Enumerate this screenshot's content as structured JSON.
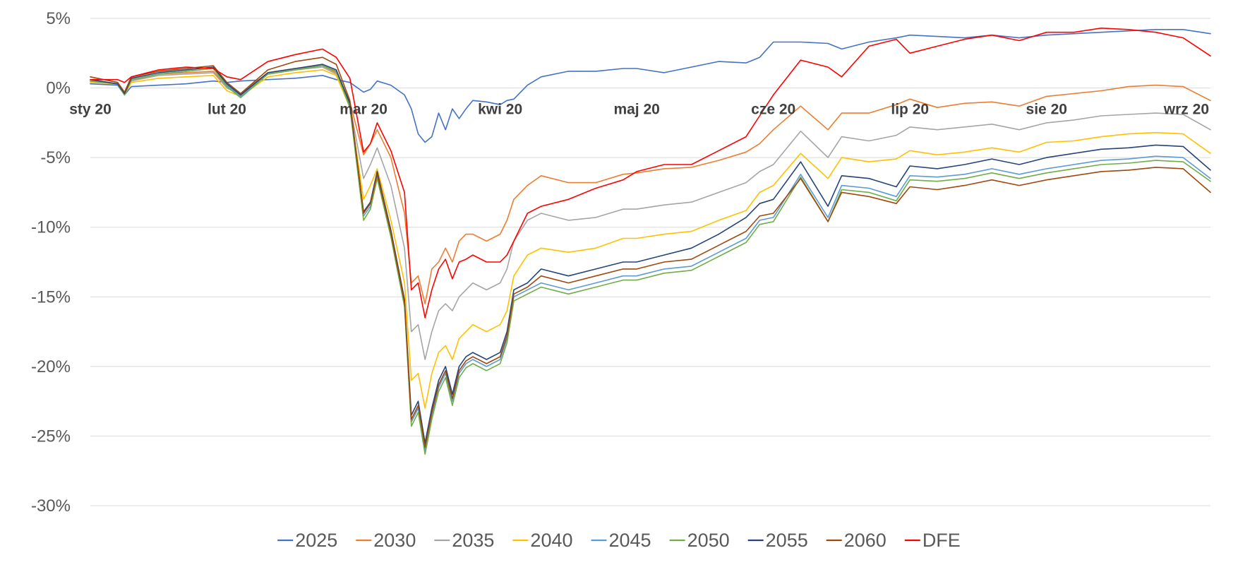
{
  "chart_data": {
    "type": "line",
    "title": "",
    "xlabel": "",
    "ylabel": "",
    "ylim": [
      -30,
      5
    ],
    "y_ticks": [
      5,
      0,
      -5,
      -10,
      -15,
      -20,
      -25,
      -30
    ],
    "y_tick_labels": [
      "5%",
      "0%",
      "-5%",
      "-10%",
      "-15%",
      "-20%",
      "-25%",
      "-30%"
    ],
    "x_range": [
      0,
      8.2
    ],
    "x_tick_positions": [
      0,
      1,
      2,
      3,
      4,
      5,
      6,
      7,
      8
    ],
    "x_tick_labels": [
      "sty 20",
      "lut 20",
      "mar 20",
      "kwi 20",
      "maj 20",
      "cze 20",
      "lip 20",
      "sie 20",
      "wrz 20"
    ],
    "grid": true,
    "legend_position": "bottom",
    "series": [
      {
        "name": "2025",
        "color": "#4472C4",
        "x": [
          0,
          0.2,
          0.25,
          0.3,
          0.5,
          0.7,
          0.9,
          1.0,
          1.1,
          1.3,
          1.5,
          1.7,
          1.8,
          1.9,
          2.0,
          2.05,
          2.1,
          2.2,
          2.3,
          2.35,
          2.4,
          2.45,
          2.5,
          2.55,
          2.6,
          2.65,
          2.7,
          2.75,
          2.8,
          2.9,
          3.0,
          3.05,
          3.1,
          3.2,
          3.3,
          3.5,
          3.7,
          3.9,
          4.0,
          4.2,
          4.4,
          4.6,
          4.8,
          4.9,
          5.0,
          5.2,
          5.4,
          5.5,
          5.7,
          5.9,
          6.0,
          6.2,
          6.4,
          6.6,
          6.8,
          7.0,
          7.2,
          7.4,
          7.6,
          7.8,
          8.0,
          8.2
        ],
        "y": [
          0.3,
          0.2,
          -0.5,
          0.1,
          0.2,
          0.3,
          0.5,
          0.4,
          0.5,
          0.6,
          0.7,
          0.9,
          0.6,
          0.4,
          -0.3,
          -0.1,
          0.5,
          0.2,
          -0.5,
          -1.5,
          -3.3,
          -3.9,
          -3.5,
          -1.8,
          -3.0,
          -1.5,
          -2.2,
          -1.5,
          -0.9,
          -1.0,
          -1.2,
          -0.9,
          -0.8,
          0.2,
          0.8,
          1.2,
          1.2,
          1.4,
          1.4,
          1.1,
          1.5,
          1.9,
          1.8,
          2.2,
          3.3,
          3.3,
          3.2,
          2.8,
          3.3,
          3.6,
          3.8,
          3.7,
          3.6,
          3.8,
          3.6,
          3.8,
          3.9,
          4.0,
          4.1,
          4.2,
          4.2,
          3.9
        ]
      },
      {
        "name": "2030",
        "color": "#ED7D31",
        "x": [
          0,
          0.2,
          0.25,
          0.3,
          0.5,
          0.7,
          0.9,
          1.0,
          1.1,
          1.3,
          1.5,
          1.7,
          1.8,
          1.9,
          2.0,
          2.05,
          2.1,
          2.2,
          2.3,
          2.35,
          2.4,
          2.45,
          2.5,
          2.55,
          2.6,
          2.65,
          2.7,
          2.75,
          2.8,
          2.9,
          3.0,
          3.05,
          3.1,
          3.2,
          3.3,
          3.5,
          3.7,
          3.9,
          4.0,
          4.2,
          4.4,
          4.6,
          4.8,
          4.9,
          5.0,
          5.2,
          5.4,
          5.5,
          5.7,
          5.9,
          6.0,
          6.2,
          6.4,
          6.6,
          6.8,
          7.0,
          7.2,
          7.4,
          7.6,
          7.8,
          8.0,
          8.2
        ],
        "y": [
          0.5,
          0.3,
          -0.4,
          0.5,
          1.0,
          1.1,
          1.2,
          0.1,
          -0.4,
          1.1,
          1.4,
          1.6,
          1.1,
          -1.0,
          -4.8,
          -4.0,
          -3.0,
          -5.0,
          -9.0,
          -14.0,
          -13.5,
          -15.5,
          -13.0,
          -12.5,
          -11.5,
          -12.5,
          -11.0,
          -10.5,
          -10.5,
          -11.0,
          -10.5,
          -9.5,
          -8.0,
          -7.0,
          -6.3,
          -6.8,
          -6.8,
          -6.2,
          -6.1,
          -5.8,
          -5.7,
          -5.2,
          -4.6,
          -4.0,
          -3.0,
          -1.3,
          -3.0,
          -1.8,
          -1.8,
          -1.2,
          -0.8,
          -1.4,
          -1.1,
          -1.0,
          -1.3,
          -0.6,
          -0.4,
          -0.2,
          0.1,
          0.2,
          0.1,
          -0.9
        ]
      },
      {
        "name": "2035",
        "color": "#A5A5A5",
        "x": [
          0,
          0.2,
          0.25,
          0.3,
          0.5,
          0.7,
          0.9,
          1.0,
          1.1,
          1.3,
          1.5,
          1.7,
          1.8,
          1.9,
          2.0,
          2.05,
          2.1,
          2.2,
          2.3,
          2.35,
          2.4,
          2.45,
          2.5,
          2.55,
          2.6,
          2.65,
          2.7,
          2.75,
          2.8,
          2.9,
          3.0,
          3.05,
          3.1,
          3.2,
          3.3,
          3.5,
          3.7,
          3.9,
          4.0,
          4.2,
          4.4,
          4.6,
          4.8,
          4.9,
          5.0,
          5.2,
          5.4,
          5.5,
          5.7,
          5.9,
          6.0,
          6.2,
          6.4,
          6.6,
          6.8,
          7.0,
          7.2,
          7.4,
          7.6,
          7.8,
          8.0,
          8.2
        ],
        "y": [
          0.5,
          0.3,
          -0.4,
          0.5,
          0.9,
          1.0,
          1.1,
          0.0,
          -0.5,
          1.0,
          1.3,
          1.5,
          1.0,
          -1.2,
          -6.5,
          -5.5,
          -4.3,
          -7.0,
          -11.5,
          -17.5,
          -17.0,
          -19.5,
          -17.5,
          -16.0,
          -15.5,
          -16.0,
          -15.0,
          -14.5,
          -14.0,
          -14.5,
          -14.0,
          -13.0,
          -11.0,
          -9.5,
          -9.0,
          -9.5,
          -9.3,
          -8.7,
          -8.7,
          -8.4,
          -8.2,
          -7.5,
          -6.8,
          -6.0,
          -5.5,
          -3.1,
          -5.0,
          -3.5,
          -3.8,
          -3.4,
          -2.8,
          -3.0,
          -2.8,
          -2.6,
          -3.0,
          -2.5,
          -2.3,
          -2.0,
          -1.9,
          -1.8,
          -1.9,
          -3.0
        ]
      },
      {
        "name": "2040",
        "color": "#FFC000",
        "x": [
          0,
          0.2,
          0.25,
          0.3,
          0.5,
          0.7,
          0.9,
          1.0,
          1.1,
          1.3,
          1.5,
          1.7,
          1.8,
          1.9,
          2.0,
          2.05,
          2.1,
          2.2,
          2.3,
          2.35,
          2.4,
          2.45,
          2.5,
          2.55,
          2.6,
          2.65,
          2.7,
          2.75,
          2.8,
          2.9,
          3.0,
          3.05,
          3.1,
          3.2,
          3.3,
          3.5,
          3.7,
          3.9,
          4.0,
          4.2,
          4.4,
          4.6,
          4.8,
          4.9,
          5.0,
          5.2,
          5.4,
          5.5,
          5.7,
          5.9,
          6.0,
          6.2,
          6.4,
          6.6,
          6.8,
          7.0,
          7.2,
          7.4,
          7.6,
          7.8,
          8.0,
          8.2
        ],
        "y": [
          0.4,
          0.3,
          -0.5,
          0.4,
          0.7,
          0.8,
          0.9,
          -0.2,
          -0.6,
          0.8,
          1.1,
          1.3,
          0.9,
          -1.4,
          -8.0,
          -7.0,
          -5.8,
          -9.5,
          -14.0,
          -21.0,
          -20.5,
          -23.0,
          -20.5,
          -19.0,
          -18.5,
          -19.5,
          -18.0,
          -17.5,
          -17.0,
          -17.5,
          -17.0,
          -16.0,
          -13.5,
          -12.0,
          -11.5,
          -11.8,
          -11.5,
          -10.8,
          -10.8,
          -10.5,
          -10.3,
          -9.5,
          -8.8,
          -7.5,
          -7.0,
          -4.7,
          -6.5,
          -5.0,
          -5.3,
          -5.1,
          -4.5,
          -4.8,
          -4.6,
          -4.3,
          -4.6,
          -3.9,
          -3.8,
          -3.5,
          -3.3,
          -3.2,
          -3.3,
          -4.7
        ]
      },
      {
        "name": "2045",
        "color": "#5B9BD5",
        "x": [
          0,
          0.2,
          0.25,
          0.3,
          0.5,
          0.7,
          0.9,
          1.0,
          1.1,
          1.3,
          1.5,
          1.7,
          1.8,
          1.9,
          2.0,
          2.05,
          2.1,
          2.2,
          2.3,
          2.35,
          2.4,
          2.45,
          2.5,
          2.55,
          2.6,
          2.65,
          2.7,
          2.75,
          2.8,
          2.9,
          3.0,
          3.05,
          3.1,
          3.2,
          3.3,
          3.5,
          3.7,
          3.9,
          4.0,
          4.2,
          4.4,
          4.6,
          4.8,
          4.9,
          5.0,
          5.2,
          5.4,
          5.5,
          5.7,
          5.9,
          6.0,
          6.2,
          6.4,
          6.6,
          6.8,
          7.0,
          7.2,
          7.4,
          7.6,
          7.8,
          8.0,
          8.2
        ],
        "y": [
          0.5,
          0.3,
          -0.5,
          0.6,
          1.0,
          1.2,
          1.4,
          0.2,
          -0.6,
          1.0,
          1.3,
          1.6,
          1.2,
          -1.3,
          -9.2,
          -8.5,
          -6.3,
          -10.5,
          -15.5,
          -24.0,
          -23.0,
          -26.0,
          -23.5,
          -21.5,
          -20.5,
          -22.5,
          -20.5,
          -19.8,
          -19.5,
          -20.0,
          -19.5,
          -18.0,
          -15.0,
          -14.5,
          -14.0,
          -14.5,
          -14.0,
          -13.5,
          -13.5,
          -13.0,
          -12.8,
          -11.8,
          -10.8,
          -9.5,
          -9.3,
          -6.2,
          -9.3,
          -7.0,
          -7.2,
          -7.8,
          -6.3,
          -6.4,
          -6.2,
          -5.8,
          -6.2,
          -5.8,
          -5.5,
          -5.2,
          -5.1,
          -4.9,
          -5.0,
          -6.5
        ]
      },
      {
        "name": "2050",
        "color": "#70AD47",
        "x": [
          0,
          0.2,
          0.25,
          0.3,
          0.5,
          0.7,
          0.9,
          1.0,
          1.1,
          1.3,
          1.5,
          1.7,
          1.8,
          1.9,
          2.0,
          2.05,
          2.1,
          2.2,
          2.3,
          2.35,
          2.4,
          2.45,
          2.5,
          2.55,
          2.6,
          2.65,
          2.7,
          2.75,
          2.8,
          2.9,
          3.0,
          3.05,
          3.1,
          3.2,
          3.3,
          3.5,
          3.7,
          3.9,
          4.0,
          4.2,
          4.4,
          4.6,
          4.8,
          4.9,
          5.0,
          5.2,
          5.4,
          5.5,
          5.7,
          5.9,
          6.0,
          6.2,
          6.4,
          6.6,
          6.8,
          7.0,
          7.2,
          7.4,
          7.6,
          7.8,
          8.0,
          8.2
        ],
        "y": [
          0.5,
          0.3,
          -0.5,
          0.6,
          1.0,
          1.2,
          1.4,
          0.1,
          -0.7,
          1.0,
          1.3,
          1.6,
          1.2,
          -1.4,
          -9.5,
          -8.7,
          -6.5,
          -10.7,
          -15.7,
          -24.3,
          -23.3,
          -26.3,
          -23.8,
          -21.8,
          -20.8,
          -22.8,
          -20.8,
          -20.1,
          -19.8,
          -20.3,
          -19.8,
          -18.3,
          -15.3,
          -14.8,
          -14.3,
          -14.8,
          -14.3,
          -13.8,
          -13.8,
          -13.3,
          -13.1,
          -12.1,
          -11.1,
          -9.8,
          -9.6,
          -6.4,
          -9.6,
          -7.3,
          -7.5,
          -8.1,
          -6.6,
          -6.7,
          -6.5,
          -6.1,
          -6.5,
          -6.1,
          -5.8,
          -5.5,
          -5.4,
          -5.2,
          -5.3,
          -6.7
        ]
      },
      {
        "name": "2055",
        "color": "#264478",
        "x": [
          0,
          0.2,
          0.25,
          0.3,
          0.5,
          0.7,
          0.9,
          1.0,
          1.1,
          1.3,
          1.5,
          1.7,
          1.8,
          1.9,
          2.0,
          2.05,
          2.1,
          2.2,
          2.3,
          2.35,
          2.4,
          2.45,
          2.5,
          2.55,
          2.6,
          2.65,
          2.7,
          2.75,
          2.8,
          2.9,
          3.0,
          3.05,
          3.1,
          3.2,
          3.3,
          3.5,
          3.7,
          3.9,
          4.0,
          4.2,
          4.4,
          4.6,
          4.8,
          4.9,
          5.0,
          5.2,
          5.4,
          5.5,
          5.7,
          5.9,
          6.0,
          6.2,
          6.4,
          6.6,
          6.8,
          7.0,
          7.2,
          7.4,
          7.6,
          7.8,
          8.0,
          8.2
        ],
        "y": [
          0.6,
          0.3,
          -0.4,
          0.7,
          1.1,
          1.3,
          1.5,
          0.3,
          -0.5,
          1.1,
          1.4,
          1.7,
          1.3,
          -1.1,
          -8.9,
          -8.2,
          -6.0,
          -10.2,
          -15.2,
          -23.5,
          -22.5,
          -25.5,
          -23.0,
          -21.0,
          -20.0,
          -22.0,
          -20.0,
          -19.3,
          -19.0,
          -19.5,
          -19.0,
          -17.5,
          -14.5,
          -14.0,
          -13.0,
          -13.5,
          -13.0,
          -12.5,
          -12.5,
          -12.0,
          -11.5,
          -10.5,
          -9.3,
          -8.3,
          -8.0,
          -5.3,
          -8.5,
          -6.3,
          -6.5,
          -7.1,
          -5.6,
          -5.8,
          -5.5,
          -5.1,
          -5.5,
          -5.0,
          -4.7,
          -4.4,
          -4.3,
          -4.1,
          -4.2,
          -5.9
        ]
      },
      {
        "name": "2060",
        "color": "#9E480E",
        "x": [
          0,
          0.2,
          0.25,
          0.3,
          0.5,
          0.7,
          0.9,
          1.0,
          1.1,
          1.3,
          1.5,
          1.7,
          1.8,
          1.9,
          2.0,
          2.05,
          2.1,
          2.2,
          2.3,
          2.35,
          2.4,
          2.45,
          2.5,
          2.55,
          2.6,
          2.65,
          2.7,
          2.75,
          2.8,
          2.9,
          3.0,
          3.05,
          3.1,
          3.2,
          3.3,
          3.5,
          3.7,
          3.9,
          4.0,
          4.2,
          4.4,
          4.6,
          4.8,
          4.9,
          5.0,
          5.2,
          5.4,
          5.5,
          5.7,
          5.9,
          6.0,
          6.2,
          6.4,
          6.6,
          6.8,
          7.0,
          7.2,
          7.4,
          7.6,
          7.8,
          8.0,
          8.2
        ],
        "y": [
          0.8,
          0.4,
          -0.3,
          0.8,
          1.2,
          1.4,
          1.6,
          0.4,
          -0.4,
          1.3,
          1.9,
          2.2,
          1.7,
          -0.9,
          -9.0,
          -8.3,
          -6.2,
          -10.4,
          -15.4,
          -23.8,
          -22.8,
          -25.8,
          -23.3,
          -21.3,
          -20.3,
          -22.3,
          -20.3,
          -19.6,
          -19.3,
          -19.8,
          -19.3,
          -17.8,
          -14.8,
          -14.3,
          -13.5,
          -14.0,
          -13.5,
          -13.0,
          -13.0,
          -12.5,
          -12.3,
          -11.3,
          -10.3,
          -9.2,
          -9.0,
          -6.5,
          -9.6,
          -7.5,
          -7.8,
          -8.3,
          -7.1,
          -7.3,
          -7.0,
          -6.6,
          -7.0,
          -6.6,
          -6.3,
          -6.0,
          -5.9,
          -5.7,
          -5.8,
          -7.5
        ]
      },
      {
        "name": "DFE",
        "color": "#FF0000",
        "x": [
          0,
          0.2,
          0.25,
          0.3,
          0.5,
          0.7,
          0.9,
          1.0,
          1.1,
          1.3,
          1.5,
          1.7,
          1.8,
          1.9,
          2.0,
          2.05,
          2.1,
          2.2,
          2.3,
          2.35,
          2.4,
          2.45,
          2.5,
          2.55,
          2.6,
          2.65,
          2.7,
          2.75,
          2.8,
          2.9,
          3.0,
          3.05,
          3.1,
          3.2,
          3.3,
          3.5,
          3.7,
          3.9,
          4.0,
          4.2,
          4.4,
          4.6,
          4.8,
          4.9,
          5.0,
          5.2,
          5.4,
          5.5,
          5.7,
          5.9,
          6.0,
          6.2,
          6.4,
          6.6,
          6.8,
          7.0,
          7.2,
          7.4,
          7.6,
          7.8,
          8.0,
          8.2
        ],
        "y": [
          0.6,
          0.6,
          0.4,
          0.8,
          1.3,
          1.5,
          1.4,
          0.8,
          0.6,
          1.9,
          2.4,
          2.8,
          2.2,
          0.7,
          -4.6,
          -4.0,
          -2.5,
          -4.5,
          -7.5,
          -14.5,
          -14.0,
          -16.5,
          -14.5,
          -13.0,
          -12.3,
          -13.7,
          -12.5,
          -12.3,
          -12.0,
          -12.5,
          -12.5,
          -12.0,
          -11.0,
          -9.0,
          -8.5,
          -8.0,
          -7.2,
          -6.6,
          -6.0,
          -5.5,
          -5.5,
          -4.5,
          -3.5,
          -2.0,
          -0.5,
          2.0,
          1.5,
          0.8,
          3.0,
          3.5,
          2.5,
          3.0,
          3.5,
          3.8,
          3.4,
          4.0,
          4.0,
          4.3,
          4.2,
          4.0,
          3.6,
          2.3
        ]
      }
    ]
  }
}
